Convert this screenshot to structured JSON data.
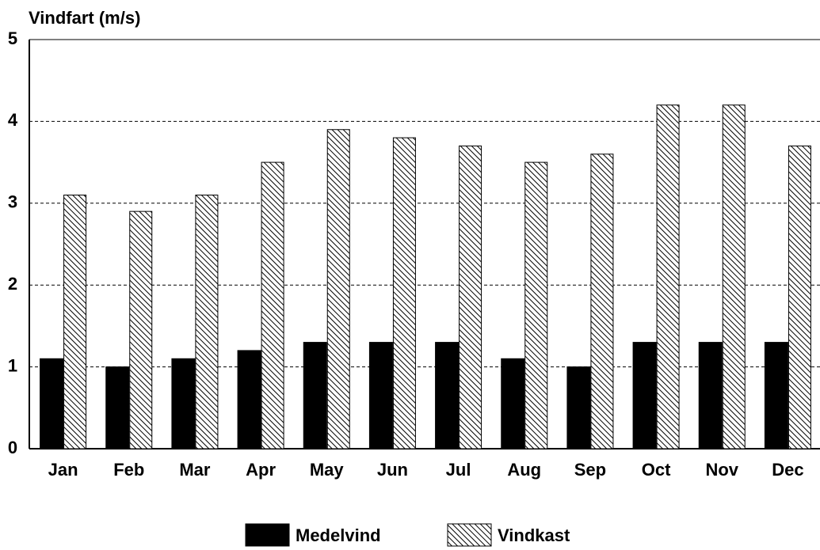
{
  "chart_data": {
    "type": "bar",
    "title": "Vindfart (m/s)",
    "categories": [
      "Jan",
      "Feb",
      "Mar",
      "Apr",
      "May",
      "Jun",
      "Jul",
      "Aug",
      "Sep",
      "Oct",
      "Nov",
      "Dec"
    ],
    "series": [
      {
        "name": "Medelvind",
        "color": "#000000",
        "values": [
          1.1,
          1.0,
          1.1,
          1.2,
          1.3,
          1.3,
          1.3,
          1.1,
          1.0,
          1.3,
          1.3,
          1.3
        ]
      },
      {
        "name": "Vindkast",
        "color": "#000000",
        "hatch": true,
        "values": [
          3.1,
          2.9,
          3.1,
          3.5,
          3.9,
          3.8,
          3.7,
          3.5,
          3.6,
          4.2,
          4.2,
          3.7
        ]
      }
    ],
    "ylim": [
      0,
      5
    ],
    "yticks": [
      0,
      1,
      2,
      3,
      4,
      5
    ],
    "grid": true
  }
}
